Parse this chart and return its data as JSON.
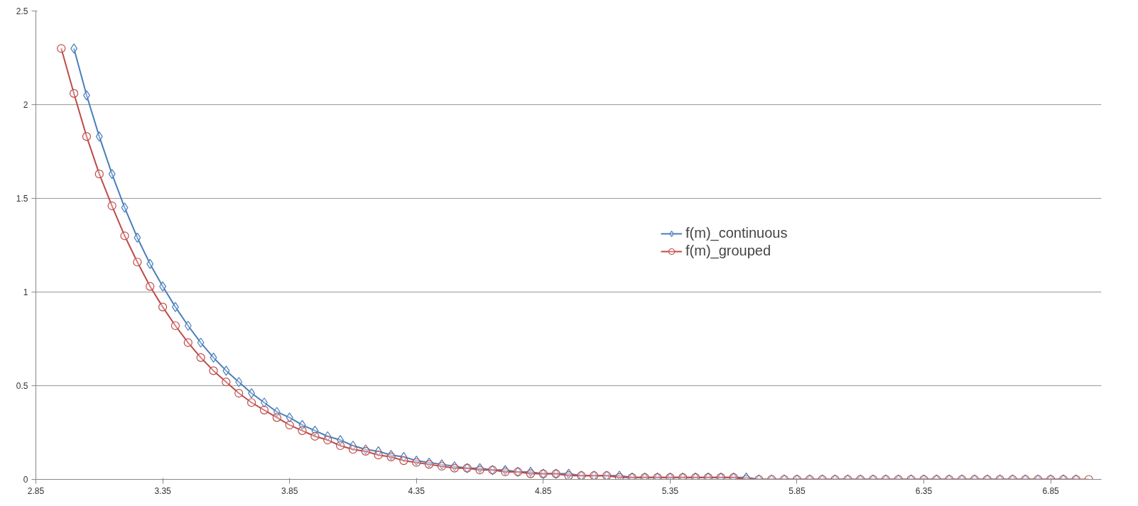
{
  "chart_data": {
    "type": "line",
    "xlim": [
      2.85,
      7.05
    ],
    "xticks": [
      2.85,
      3.35,
      3.85,
      4.35,
      4.85,
      5.35,
      5.85,
      6.35,
      6.85
    ],
    "ylim": [
      0,
      2.5
    ],
    "yticks": [
      0,
      0.5,
      1,
      1.5,
      2,
      2.5
    ],
    "grid": "y",
    "legend": "right",
    "line_style": "solid",
    "series": [
      {
        "name": "f(m)_continuous",
        "color": "#4a7ebb",
        "marker": "diamond",
        "x": [
          3.0,
          3.05,
          3.1,
          3.15,
          3.2,
          3.25,
          3.3,
          3.35,
          3.4,
          3.45,
          3.5,
          3.55,
          3.6,
          3.65,
          3.7,
          3.75,
          3.8,
          3.85,
          3.9,
          3.95,
          4.0,
          4.05,
          4.1,
          4.15,
          4.2,
          4.25,
          4.3,
          4.35,
          4.4,
          4.45,
          4.5,
          4.55,
          4.6,
          4.65,
          4.7,
          4.75,
          4.8,
          4.85,
          4.9,
          4.95,
          5.0,
          5.05,
          5.1,
          5.15,
          5.2,
          5.25,
          5.3,
          5.35,
          5.4,
          5.45,
          5.5,
          5.55,
          5.6,
          5.65,
          5.7,
          5.75,
          5.8,
          5.85,
          5.9,
          5.95,
          6.0,
          6.05,
          6.1,
          6.15,
          6.2,
          6.25,
          6.3,
          6.35,
          6.4,
          6.45,
          6.5,
          6.55,
          6.6,
          6.65,
          6.7,
          6.75,
          6.8,
          6.85,
          6.9,
          6.95
        ],
        "values": [
          2.3,
          2.05,
          1.83,
          1.63,
          1.45,
          1.29,
          1.15,
          1.03,
          0.92,
          0.82,
          0.73,
          0.65,
          0.58,
          0.52,
          0.46,
          0.41,
          0.36,
          0.33,
          0.29,
          0.26,
          0.23,
          0.21,
          0.18,
          0.16,
          0.15,
          0.13,
          0.12,
          0.1,
          0.09,
          0.08,
          0.07,
          0.06,
          0.06,
          0.05,
          0.05,
          0.04,
          0.04,
          0.03,
          0.03,
          0.03,
          0.02,
          0.02,
          0.02,
          0.02,
          0.01,
          0.01,
          0.01,
          0.01,
          0.01,
          0.01,
          0.01,
          0.01,
          0.01,
          0.01,
          0,
          0,
          0,
          0,
          0,
          0,
          0,
          0,
          0,
          0,
          0,
          0,
          0,
          0,
          0,
          0,
          0,
          0,
          0,
          0,
          0,
          0,
          0,
          0,
          0,
          0
        ]
      },
      {
        "name": "f(m)_grouped",
        "color": "#be4b48",
        "marker": "circle",
        "x": [
          2.95,
          3.0,
          3.05,
          3.1,
          3.15,
          3.2,
          3.25,
          3.3,
          3.35,
          3.4,
          3.45,
          3.5,
          3.55,
          3.6,
          3.65,
          3.7,
          3.75,
          3.8,
          3.85,
          3.9,
          3.95,
          4.0,
          4.05,
          4.1,
          4.15,
          4.2,
          4.25,
          4.3,
          4.35,
          4.4,
          4.45,
          4.5,
          4.55,
          4.6,
          4.65,
          4.7,
          4.75,
          4.8,
          4.85,
          4.9,
          4.95,
          5.0,
          5.05,
          5.1,
          5.15,
          5.2,
          5.25,
          5.3,
          5.35,
          5.4,
          5.45,
          5.5,
          5.55,
          5.6,
          5.65,
          5.7,
          5.75,
          5.8,
          5.85,
          5.9,
          5.95,
          6.0,
          6.05,
          6.1,
          6.15,
          6.2,
          6.25,
          6.3,
          6.35,
          6.4,
          6.45,
          6.5,
          6.55,
          6.6,
          6.65,
          6.7,
          6.75,
          6.8,
          6.85,
          6.9,
          6.95,
          7.0
        ],
        "values": [
          2.3,
          2.06,
          1.83,
          1.63,
          1.46,
          1.3,
          1.16,
          1.03,
          0.92,
          0.82,
          0.73,
          0.65,
          0.58,
          0.52,
          0.46,
          0.41,
          0.37,
          0.33,
          0.29,
          0.26,
          0.23,
          0.21,
          0.18,
          0.16,
          0.15,
          0.13,
          0.12,
          0.1,
          0.09,
          0.08,
          0.07,
          0.06,
          0.06,
          0.05,
          0.05,
          0.04,
          0.04,
          0.03,
          0.03,
          0.03,
          0.02,
          0.02,
          0.02,
          0.02,
          0.01,
          0.01,
          0.01,
          0.01,
          0.01,
          0.01,
          0.01,
          0.01,
          0.01,
          0.01,
          0,
          0,
          0,
          0,
          0,
          0,
          0,
          0,
          0,
          0,
          0,
          0,
          0,
          0,
          0,
          0,
          0,
          0,
          0,
          0,
          0,
          0,
          0,
          0,
          0,
          0,
          0,
          0
        ]
      }
    ]
  }
}
